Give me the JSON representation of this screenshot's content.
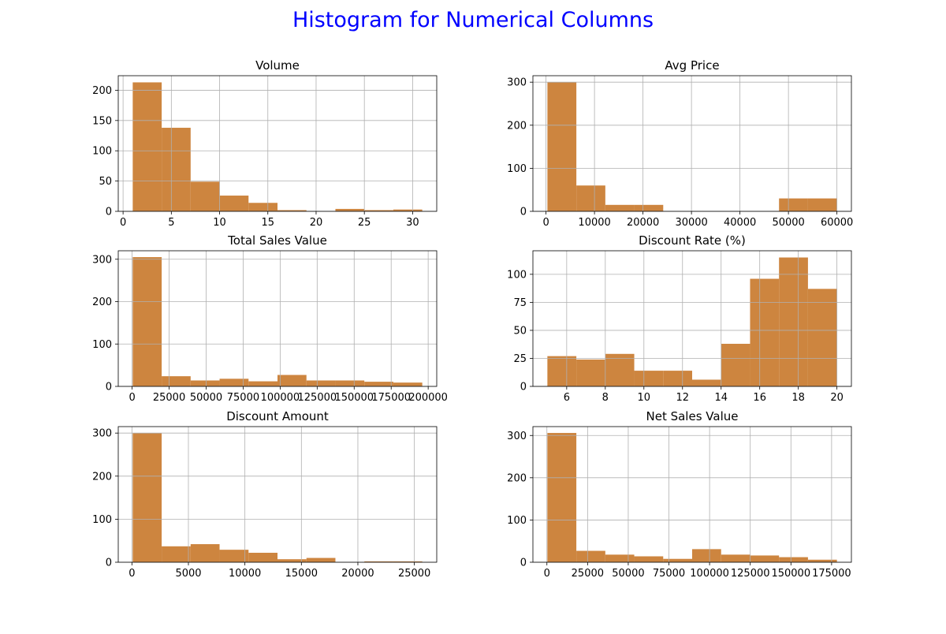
{
  "suptitle": "Histogram for Numerical Columns",
  "colors": {
    "title": "#0000ff",
    "bar": "#cd853f",
    "grid": "#b0b0b0",
    "axis": "#000000",
    "text": "#000000"
  },
  "chart_data": [
    {
      "type": "bar",
      "title": "Volume",
      "grid": true,
      "bin_edges": [
        1,
        4,
        7,
        10,
        13,
        16,
        19,
        22,
        25,
        28,
        31
      ],
      "values": [
        213,
        138,
        49,
        26,
        14,
        2,
        0,
        4,
        2,
        3
      ],
      "xlim": [
        -0.5,
        32.5
      ],
      "ylim": [
        0,
        224
      ],
      "xticks": [
        0,
        5,
        10,
        15,
        20,
        25,
        30
      ],
      "xtick_labels": [
        "0",
        "5",
        "10",
        "15",
        "20",
        "25",
        "30"
      ],
      "yticks": [
        0,
        50,
        100,
        150,
        200
      ],
      "ytick_labels": [
        "0",
        "50",
        "100",
        "150",
        "200"
      ]
    },
    {
      "type": "bar",
      "title": "Avg Price",
      "grid": true,
      "bin_edges": [
        290,
        6261,
        12232,
        18203,
        24174,
        30145,
        36116,
        42087,
        48058,
        54029,
        60000
      ],
      "values": [
        300,
        60,
        15,
        15,
        0,
        0,
        0,
        0,
        30,
        30
      ],
      "xlim": [
        -2700,
        62985
      ],
      "ylim": [
        0,
        315
      ],
      "xticks": [
        0,
        10000,
        20000,
        30000,
        40000,
        50000,
        60000
      ],
      "xtick_labels": [
        "0",
        "10000",
        "20000",
        "30000",
        "40000",
        "50000",
        "60000"
      ],
      "yticks": [
        0,
        100,
        200,
        300
      ],
      "ytick_labels": [
        "0",
        "100",
        "200",
        "300"
      ]
    },
    {
      "type": "bar",
      "title": "Total Sales Value",
      "grid": true,
      "bin_edges": [
        400,
        19960,
        39520,
        59080,
        78640,
        98200,
        117760,
        137320,
        156880,
        176440,
        196000
      ],
      "values": [
        305,
        24,
        14,
        18,
        12,
        27,
        14,
        14,
        11,
        9
      ],
      "xlim": [
        -9380,
        205780
      ],
      "ylim": [
        0,
        320
      ],
      "xticks": [
        0,
        25000,
        50000,
        75000,
        100000,
        125000,
        150000,
        175000,
        200000
      ],
      "xtick_labels": [
        "0",
        "25000",
        "50000",
        "75000",
        "100000",
        "125000",
        "150000",
        "175000",
        "200000"
      ],
      "yticks": [
        0,
        100,
        200,
        300
      ],
      "ytick_labels": [
        "0",
        "100",
        "200",
        "300"
      ]
    },
    {
      "type": "bar",
      "title": "Discount Rate (%)",
      "grid": true,
      "bin_edges": [
        5,
        6.5,
        8,
        9.5,
        11,
        12.5,
        14,
        15.5,
        17,
        18.5,
        20
      ],
      "values": [
        27,
        24,
        29,
        14,
        14,
        6,
        38,
        96,
        115,
        87
      ],
      "xlim": [
        4.25,
        20.75
      ],
      "ylim": [
        0,
        121
      ],
      "xticks": [
        6,
        8,
        10,
        12,
        14,
        16,
        18,
        20
      ],
      "xtick_labels": [
        "6",
        "8",
        "10",
        "12",
        "14",
        "16",
        "18",
        "20"
      ],
      "yticks": [
        0,
        25,
        50,
        75,
        100
      ],
      "ytick_labels": [
        "0",
        "25",
        "50",
        "75",
        "100"
      ]
    },
    {
      "type": "bar",
      "title": "Discount Amount",
      "grid": true,
      "bin_edges": [
        70,
        2633,
        5196,
        7759,
        10322,
        12885,
        15448,
        18011,
        20574,
        23137,
        25700
      ],
      "values": [
        300,
        37,
        42,
        29,
        22,
        7,
        10,
        0,
        2,
        2
      ],
      "xlim": [
        -1210,
        26980
      ],
      "ylim": [
        0,
        315
      ],
      "xticks": [
        0,
        5000,
        10000,
        15000,
        20000,
        25000
      ],
      "xtick_labels": [
        "0",
        "5000",
        "10000",
        "15000",
        "20000",
        "25000"
      ],
      "yticks": [
        0,
        100,
        200,
        300
      ],
      "ytick_labels": [
        "0",
        "100",
        "200",
        "300"
      ]
    },
    {
      "type": "bar",
      "title": "Net Sales Value",
      "grid": true,
      "bin_edges": [
        300,
        18097,
        35894,
        53691,
        71488,
        89285,
        107082,
        124879,
        142676,
        160473,
        178270
      ],
      "values": [
        306,
        27,
        18,
        14,
        8,
        31,
        18,
        16,
        12,
        6
      ],
      "xlim": [
        -8600,
        187170
      ],
      "ylim": [
        0,
        321
      ],
      "xticks": [
        0,
        25000,
        50000,
        75000,
        100000,
        125000,
        150000,
        175000
      ],
      "xtick_labels": [
        "0",
        "25000",
        "50000",
        "75000",
        "100000",
        "125000",
        "150000",
        "175000"
      ],
      "yticks": [
        0,
        100,
        200,
        300
      ],
      "ytick_labels": [
        "0",
        "100",
        "200",
        "300"
      ]
    }
  ]
}
